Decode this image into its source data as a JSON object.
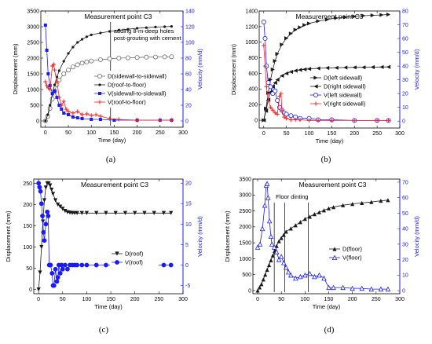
{
  "figure": {
    "panel_labels": [
      "(a)",
      "(b)",
      "(c)",
      "(d)"
    ]
  },
  "colors": {
    "black": "#1a1a1a",
    "gray": "#6e6e6e",
    "blue": "#1a1aff",
    "red": "#ff2020"
  },
  "chart_data": [
    {
      "type": "line",
      "panel": "(a)",
      "title": "Measurement point C3",
      "xlabel": "Time (day)",
      "ylabel": "Displacement (mm)",
      "y2label": "Velocity (mm/d)",
      "xlim": [
        -10,
        300
      ],
      "ylim": [
        -200,
        3500
      ],
      "y2lim": [
        -8,
        140
      ],
      "xticks": [
        0,
        50,
        100,
        150,
        200,
        250,
        300
      ],
      "yticks": [
        0,
        500,
        1000,
        1500,
        2000,
        2500,
        3000,
        3500
      ],
      "y2ticks": [
        0,
        20,
        40,
        60,
        80,
        100,
        120,
        140
      ],
      "annotations": [
        {
          "text": [
            "adding 8-m-deep holes",
            "post-grouting with cement"
          ],
          "x": 142
        }
      ],
      "legend": "center-right",
      "series": [
        {
          "name": "D(sidewall-to-sidewall)",
          "axis": "y",
          "marker": "circle-open",
          "color": "#6e6e6e",
          "x": [
            0,
            5,
            10,
            15,
            20,
            25,
            30,
            40,
            50,
            60,
            70,
            80,
            90,
            100,
            120,
            140,
            160,
            180,
            200,
            220,
            240,
            260,
            275
          ],
          "y": [
            0,
            150,
            400,
            700,
            950,
            1150,
            1300,
            1500,
            1620,
            1720,
            1790,
            1840,
            1880,
            1910,
            1950,
            1980,
            2000,
            2010,
            2020,
            2030,
            2035,
            2040,
            2045
          ]
        },
        {
          "name": "D(roof-to-floor)",
          "axis": "y",
          "marker": "dot",
          "color": "#1a1a1a",
          "x": [
            0,
            5,
            10,
            15,
            20,
            25,
            30,
            40,
            50,
            60,
            70,
            80,
            90,
            100,
            120,
            140,
            160,
            180,
            200,
            220,
            240,
            260,
            275
          ],
          "y": [
            0,
            200,
            500,
            850,
            1150,
            1400,
            1600,
            1900,
            2150,
            2350,
            2500,
            2600,
            2680,
            2740,
            2800,
            2850,
            2890,
            2920,
            2950,
            2970,
            2990,
            3000,
            3010
          ]
        },
        {
          "name": "V(sidewall-to-sidewall)",
          "axis": "y2",
          "marker": "square",
          "color": "#1a1aff",
          "x": [
            0,
            3,
            6,
            10,
            15,
            20,
            25,
            30,
            35,
            40,
            50,
            60,
            70,
            80,
            100,
            120,
            150,
            200,
            250,
            275
          ],
          "y": [
            122,
            90,
            60,
            45,
            35,
            38,
            30,
            20,
            15,
            10,
            8,
            5,
            4,
            3,
            2,
            2,
            1,
            1,
            1,
            1
          ]
        },
        {
          "name": "V(roof-to-floor)",
          "axis": "y2",
          "marker": "plus",
          "color": "#ff2020",
          "x": [
            0,
            3,
            6,
            10,
            15,
            18,
            20,
            25,
            30,
            35,
            40,
            45,
            50,
            60,
            70,
            80,
            90,
            100,
            110,
            120,
            140,
            160,
            200,
            250,
            275
          ],
          "y": [
            50,
            45,
            42,
            40,
            70,
            72,
            65,
            50,
            30,
            20,
            25,
            15,
            12,
            10,
            12,
            8,
            9,
            7,
            8,
            6,
            3,
            2,
            1,
            1,
            1
          ]
        }
      ]
    },
    {
      "type": "line",
      "panel": "(b)",
      "title": "Measurement point C3",
      "xlabel": "Time (day)",
      "ylabel": "Displacement (mm)",
      "y2label": "Velocity (mm/d)",
      "xlim": [
        -10,
        300
      ],
      "ylim": [
        -100,
        1400
      ],
      "y2lim": [
        -5,
        80
      ],
      "xticks": [
        0,
        50,
        100,
        150,
        200,
        250,
        300
      ],
      "yticks": [
        0,
        200,
        400,
        600,
        800,
        1000,
        1200,
        1400
      ],
      "y2ticks": [
        0,
        10,
        20,
        30,
        40,
        50,
        60,
        70,
        80
      ],
      "legend": "center-right",
      "series": [
        {
          "name": "D(left sidewall)",
          "axis": "y",
          "marker": "triangle-right",
          "color": "#1a1a1a",
          "x": [
            0,
            5,
            10,
            15,
            20,
            25,
            30,
            40,
            50,
            60,
            70,
            80,
            90,
            100,
            120,
            140,
            160,
            180,
            200,
            220,
            240,
            260,
            275
          ],
          "y": [
            0,
            150,
            350,
            520,
            650,
            760,
            850,
            970,
            1050,
            1110,
            1160,
            1190,
            1220,
            1240,
            1270,
            1290,
            1310,
            1320,
            1330,
            1340,
            1345,
            1350,
            1355
          ]
        },
        {
          "name": "D(right sidewall)",
          "axis": "y",
          "marker": "triangle-left",
          "color": "#1a1a1a",
          "x": [
            0,
            5,
            10,
            15,
            20,
            25,
            30,
            40,
            50,
            60,
            70,
            80,
            90,
            100,
            120,
            140,
            160,
            180,
            200,
            220,
            240,
            260,
            275
          ],
          "y": [
            0,
            120,
            260,
            360,
            430,
            480,
            520,
            570,
            600,
            620,
            635,
            645,
            652,
            658,
            665,
            670,
            672,
            675,
            677,
            678,
            680,
            682,
            683
          ]
        },
        {
          "name": "V(left sidewall)",
          "axis": "y2",
          "marker": "circle-open",
          "color": "#1a1aff",
          "x": [
            0,
            3,
            6,
            10,
            15,
            20,
            25,
            30,
            35,
            40,
            45,
            50,
            60,
            70,
            80,
            100,
            120,
            150,
            200,
            250,
            275
          ],
          "y": [
            72,
            60,
            40,
            28,
            25,
            20,
            22,
            15,
            10,
            8,
            6,
            5,
            4,
            3,
            2,
            2,
            1,
            1,
            0.5,
            0.5,
            0.5
          ]
        },
        {
          "name": "V(right sidewall)",
          "axis": "y2",
          "marker": "plus",
          "color": "#ff2020",
          "x": [
            0,
            3,
            6,
            10,
            15,
            20,
            25,
            30,
            35,
            38,
            40,
            45,
            50,
            60,
            70,
            80,
            100,
            120,
            150,
            200,
            250,
            275
          ],
          "y": [
            55,
            40,
            25,
            15,
            10,
            8,
            6,
            5,
            18,
            20,
            8,
            3,
            2,
            1,
            1,
            1,
            0.5,
            0.5,
            0.5,
            0.5,
            0.5,
            0.5
          ]
        }
      ]
    },
    {
      "type": "line",
      "panel": "(c)",
      "title": "Measurement point C3",
      "xlabel": "Time (day)",
      "ylabel": "Displacement (mm)",
      "y2label": "Velocity (mm/d)",
      "xlim": [
        -10,
        300
      ],
      "ylim": [
        -10,
        260
      ],
      "y2lim": [
        -7,
        21
      ],
      "xticks": [
        0,
        50,
        100,
        150,
        200,
        250,
        300
      ],
      "yticks": [
        0,
        50,
        100,
        150,
        200,
        250
      ],
      "y2ticks": [
        -5,
        0,
        5,
        10,
        15,
        20
      ],
      "legend": "center-right",
      "series": [
        {
          "name": "D(roof)",
          "axis": "y",
          "marker": "triangle-down",
          "color": "#1a1a1a",
          "x": [
            0,
            3,
            6,
            9,
            12,
            15,
            18,
            21,
            24,
            27,
            30,
            35,
            40,
            45,
            50,
            55,
            60,
            65,
            70,
            75,
            80,
            90,
            100,
            120,
            140,
            160,
            180,
            200,
            220,
            240,
            260,
            275
          ],
          "y": [
            0,
            40,
            100,
            160,
            210,
            240,
            250,
            250,
            245,
            235,
            225,
            210,
            200,
            195,
            190,
            185,
            182,
            181,
            180,
            180,
            180,
            180,
            180,
            180,
            180,
            180,
            180,
            180,
            180,
            180,
            180,
            180
          ]
        },
        {
          "name": "V(roof)",
          "axis": "y2",
          "marker": "circle-filled",
          "color": "#1a1aff",
          "x": [
            0,
            2,
            4,
            6,
            8,
            10,
            12,
            15,
            18,
            20,
            22,
            25,
            28,
            30,
            32,
            35,
            38,
            40,
            42,
            45,
            48,
            50,
            55,
            60,
            65,
            70,
            75,
            80,
            90,
            100,
            120,
            140,
            160,
            180,
            200,
            220,
            240,
            260,
            275
          ],
          "y": [
            20,
            19,
            18,
            15,
            12,
            8,
            6,
            10,
            13,
            12,
            0,
            0,
            -2,
            -5,
            -5,
            -1,
            -4,
            -3,
            0,
            -2,
            0,
            -1,
            0,
            -1,
            0,
            0,
            0,
            0,
            0,
            0,
            0,
            0,
            0,
            0,
            0,
            0,
            0,
            0,
            0
          ]
        }
      ]
    },
    {
      "type": "line",
      "panel": "(d)",
      "title": "Measurement point C3",
      "xlabel": "Time (day)",
      "ylabel": "Displacement (mm)",
      "y2label": "Velocity (mm/d)",
      "xlim": [
        -10,
        300
      ],
      "ylim": [
        -100,
        3500
      ],
      "y2lim": [
        -2,
        72
      ],
      "xticks": [
        0,
        50,
        100,
        150,
        200,
        250,
        300
      ],
      "yticks": [
        0,
        500,
        1000,
        1500,
        2000,
        2500,
        3000,
        3500
      ],
      "y2ticks": [
        0,
        10,
        20,
        30,
        40,
        50,
        60,
        70
      ],
      "annotations": [
        {
          "text": [
            "Floor dinting"
          ],
          "lines_x": [
            35,
            57,
            107
          ]
        }
      ],
      "legend": "center-right",
      "series": [
        {
          "name": "D(floor)",
          "axis": "y",
          "marker": "triangle-up",
          "color": "#1a1a1a",
          "x": [
            0,
            4,
            8,
            12,
            16,
            20,
            24,
            28,
            32,
            36,
            40,
            45,
            50,
            55,
            60,
            70,
            80,
            90,
            100,
            110,
            120,
            130,
            140,
            150,
            160,
            180,
            200,
            220,
            240,
            260,
            275
          ],
          "y": [
            0,
            100,
            200,
            350,
            500,
            650,
            800,
            950,
            1100,
            1250,
            1400,
            1550,
            1650,
            1750,
            1850,
            1950,
            2050,
            2150,
            2250,
            2320,
            2400,
            2460,
            2520,
            2580,
            2620,
            2680,
            2720,
            2750,
            2780,
            2820,
            2840
          ]
        },
        {
          "name": "V(floor)",
          "axis": "y2",
          "marker": "triangle-open",
          "color": "#1a1aff",
          "x": [
            0,
            5,
            10,
            15,
            18,
            20,
            22,
            25,
            28,
            30,
            35,
            40,
            45,
            50,
            55,
            60,
            65,
            70,
            80,
            90,
            100,
            110,
            120,
            130,
            140,
            150,
            160,
            180,
            200,
            220,
            240,
            260,
            275
          ],
          "y": [
            28,
            30,
            40,
            55,
            68,
            69,
            60,
            45,
            35,
            30,
            28,
            25,
            20,
            22,
            18,
            15,
            12,
            10,
            8,
            9,
            10,
            11,
            9,
            10,
            8,
            2,
            2,
            2,
            1.5,
            1.5,
            1,
            1,
            1
          ]
        }
      ]
    }
  ]
}
